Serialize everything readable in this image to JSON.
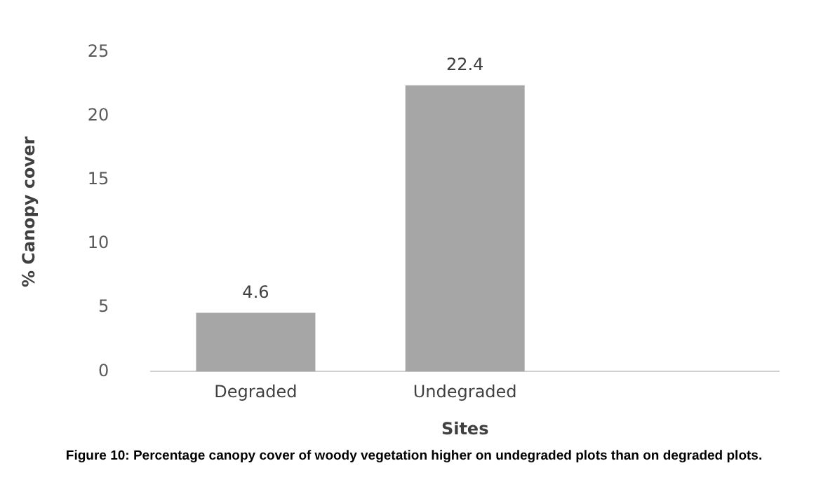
{
  "chart_data": {
    "type": "bar",
    "xlabel": "Sites",
    "ylabel": "% Canopy cover",
    "categories": [
      "Degraded",
      "Undegraded",
      null
    ],
    "values": [
      4.6,
      22.4,
      null
    ],
    "color": "#a6a6a6",
    "ylim": [
      0,
      25
    ],
    "yticks": [
      0,
      5,
      10,
      15,
      20,
      25
    ],
    "grid": false,
    "data_labels": true,
    "annotations": [
      "Figure 10: Percentage canopy cover of woody vegetation higher on undegraded plots than on degraded plots."
    ]
  }
}
